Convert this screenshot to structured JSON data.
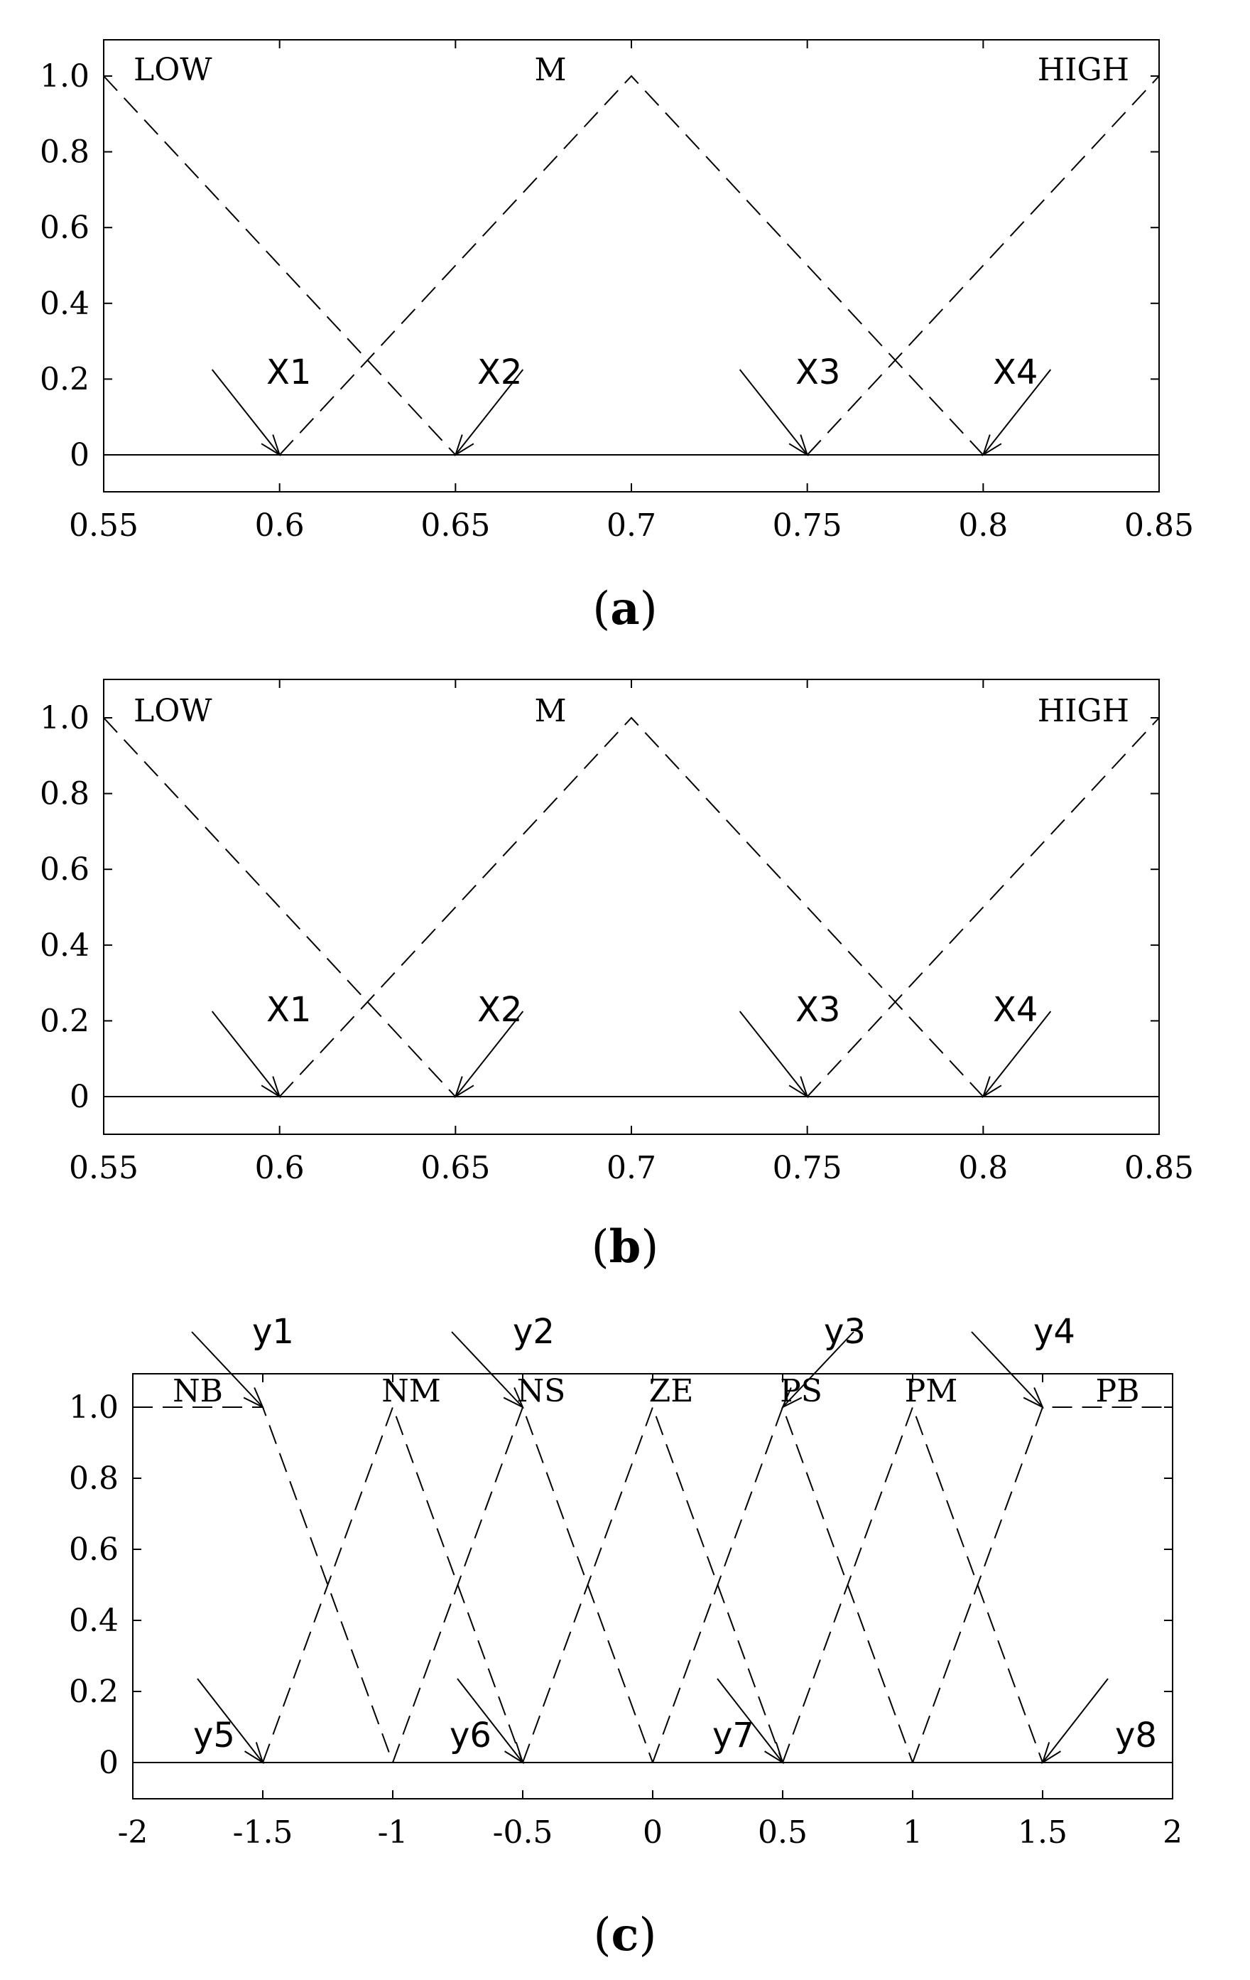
{
  "chart_data": [
    {
      "type": "line",
      "caption": "a",
      "xlim": [
        0.55,
        0.85
      ],
      "ylim": [
        0,
        1.0
      ],
      "x_ticks": [
        0.55,
        0.6,
        0.65,
        0.7,
        0.75,
        0.8,
        0.85
      ],
      "x_tick_labels": [
        "0.55",
        "0.6",
        "0.65",
        "0.7",
        "0.75",
        "0.8",
        "0.85"
      ],
      "y_ticks": [
        0,
        0.2,
        0.4,
        0.6,
        0.8,
        1.0
      ],
      "y_tick_labels": [
        "0",
        "0.2",
        "0.4",
        "0.6",
        "0.8",
        "1.0"
      ],
      "grid": false,
      "series": [
        {
          "name": "LOW",
          "style": "dashed",
          "points": [
            [
              0.55,
              1.0
            ],
            [
              0.65,
              0.0
            ]
          ]
        },
        {
          "name": "M",
          "style": "dashed",
          "points": [
            [
              0.6,
              0.0
            ],
            [
              0.7,
              1.0
            ],
            [
              0.8,
              0.0
            ]
          ]
        },
        {
          "name": "HIGH",
          "style": "dashed",
          "points": [
            [
              0.75,
              0.0
            ],
            [
              0.85,
              1.0
            ]
          ]
        }
      ],
      "annotations": [
        {
          "text": "X1",
          "x": 0.6,
          "y": 0
        },
        {
          "text": "X2",
          "x": 0.65,
          "y": 0
        },
        {
          "text": "X3",
          "x": 0.75,
          "y": 0
        },
        {
          "text": "X4",
          "x": 0.8,
          "y": 0
        }
      ]
    },
    {
      "type": "line",
      "caption": "b",
      "xlim": [
        0.55,
        0.85
      ],
      "ylim": [
        0,
        1.0
      ],
      "x_ticks": [
        0.55,
        0.6,
        0.65,
        0.7,
        0.75,
        0.8,
        0.85
      ],
      "x_tick_labels": [
        "0.55",
        "0.6",
        "0.65",
        "0.7",
        "0.75",
        "0.8",
        "0.85"
      ],
      "y_ticks": [
        0,
        0.2,
        0.4,
        0.6,
        0.8,
        1.0
      ],
      "y_tick_labels": [
        "0",
        "0.2",
        "0.4",
        "0.6",
        "0.8",
        "1.0"
      ],
      "grid": false,
      "series": [
        {
          "name": "LOW",
          "style": "dashed",
          "points": [
            [
              0.55,
              1.0
            ],
            [
              0.65,
              0.0
            ]
          ]
        },
        {
          "name": "M",
          "style": "dashed",
          "points": [
            [
              0.6,
              0.0
            ],
            [
              0.7,
              1.0
            ],
            [
              0.8,
              0.0
            ]
          ]
        },
        {
          "name": "HIGH",
          "style": "dashed",
          "points": [
            [
              0.75,
              0.0
            ],
            [
              0.85,
              1.0
            ]
          ]
        }
      ],
      "annotations": [
        {
          "text": "X1",
          "x": 0.6,
          "y": 0
        },
        {
          "text": "X2",
          "x": 0.65,
          "y": 0
        },
        {
          "text": "X3",
          "x": 0.75,
          "y": 0
        },
        {
          "text": "X4",
          "x": 0.8,
          "y": 0
        }
      ]
    },
    {
      "type": "line",
      "caption": "c",
      "xlim": [
        -2,
        2
      ],
      "ylim": [
        0,
        1.0
      ],
      "x_ticks": [
        -2,
        -1.5,
        -1,
        -0.5,
        0,
        0.5,
        1,
        1.5,
        2
      ],
      "x_tick_labels": [
        "-2",
        "-1.5",
        "-1",
        "-0.5",
        "0",
        "0.5",
        "1",
        "1.5",
        "2"
      ],
      "y_ticks": [
        0,
        0.2,
        0.4,
        0.6,
        0.8,
        1.0
      ],
      "y_tick_labels": [
        "0",
        "0.2",
        "0.4",
        "0.6",
        "0.8",
        "1.0"
      ],
      "grid": false,
      "series": [
        {
          "name": "NB",
          "style": "dashed",
          "points": [
            [
              -2,
              1.0
            ],
            [
              -1.5,
              1.0
            ],
            [
              -1,
              0.0
            ]
          ]
        },
        {
          "name": "NM",
          "style": "dashed",
          "points": [
            [
              -1.5,
              0.0
            ],
            [
              -1,
              1.0
            ],
            [
              -0.5,
              0.0
            ]
          ]
        },
        {
          "name": "NS",
          "style": "dashed",
          "points": [
            [
              -1,
              0.0
            ],
            [
              -0.5,
              1.0
            ],
            [
              0,
              0.0
            ]
          ]
        },
        {
          "name": "ZE",
          "style": "dashed",
          "points": [
            [
              -0.5,
              0.0
            ],
            [
              0,
              1.0
            ],
            [
              0.5,
              0.0
            ]
          ]
        },
        {
          "name": "PS",
          "style": "dashed",
          "points": [
            [
              0,
              0.0
            ],
            [
              0.5,
              1.0
            ],
            [
              1,
              0.0
            ]
          ]
        },
        {
          "name": "PM",
          "style": "dashed",
          "points": [
            [
              0.5,
              0.0
            ],
            [
              1,
              1.0
            ],
            [
              1.5,
              0.0
            ]
          ]
        },
        {
          "name": "PB",
          "style": "dashed",
          "points": [
            [
              1,
              0.0
            ],
            [
              1.5,
              1.0
            ],
            [
              2,
              1.0
            ]
          ]
        }
      ],
      "annotations": [
        {
          "text": "y1",
          "x": -1.5,
          "y": 1.0
        },
        {
          "text": "y2",
          "x": -0.5,
          "y": 1.0
        },
        {
          "text": "y3",
          "x": 0.5,
          "y": 1.0
        },
        {
          "text": "y4",
          "x": 1.5,
          "y": 1.0
        },
        {
          "text": "y5",
          "x": -1.5,
          "y": 0
        },
        {
          "text": "y6",
          "x": -0.5,
          "y": 0
        },
        {
          "text": "y7",
          "x": 0.5,
          "y": 0
        },
        {
          "text": "y8",
          "x": 1.5,
          "y": 0
        }
      ]
    }
  ]
}
